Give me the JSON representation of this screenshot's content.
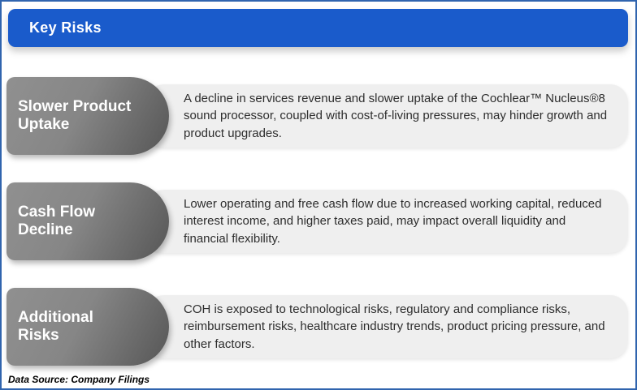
{
  "header": {
    "title": "Key Risks"
  },
  "colors": {
    "accent_blue": "#1a5bcb",
    "page_border_blue": "#3064ae",
    "label_gradient_start": "#909090",
    "label_gradient_end": "#565656",
    "description_bg": "#efefef",
    "label_text": "#ffffff",
    "description_text": "#2d2d2d"
  },
  "risks": [
    {
      "label": "Slower Product Uptake",
      "description": "A decline in services revenue and slower uptake of the Cochlear™ Nucleus®8 sound processor, coupled with cost-of-living pressures, may hinder growth and product upgrades."
    },
    {
      "label": "Cash Flow Decline",
      "description": "Lower operating and free cash flow due to increased working capital, reduced interest income, and higher taxes paid, may impact overall liquidity and financial flexibility."
    },
    {
      "label": "Additional Risks",
      "description": "COH is exposed to technological risks, regulatory and compliance risks, reimbursement risks, healthcare industry trends, product pricing pressure, and other factors."
    }
  ],
  "footer": {
    "text": "Data Source: Company Filings"
  }
}
